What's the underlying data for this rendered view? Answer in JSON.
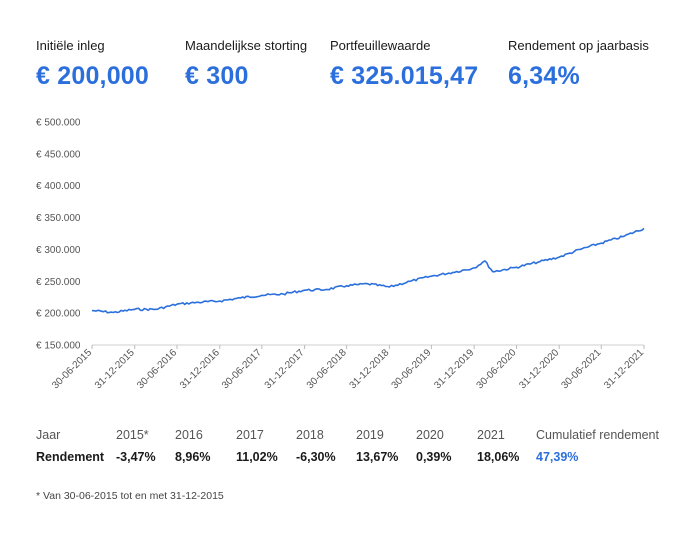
{
  "stats": [
    {
      "label": "Initiële inleg",
      "value": "€ 200,000"
    },
    {
      "label": "Maandelijkse storting",
      "value": "€ 300"
    },
    {
      "label": "Portfeuillewaarde",
      "value": "€ 325.015,47"
    },
    {
      "label": "Rendement op jaarbasis",
      "value": "6,34%"
    }
  ],
  "chart_data": {
    "type": "line",
    "ylim": [
      150000,
      500000
    ],
    "y_ticks": [
      "€ 150.000",
      "€ 200.000",
      "€ 250.000",
      "€ 300.000",
      "€ 350.000",
      "€ 400.000",
      "€ 450.000",
      "€ 500.000"
    ],
    "x_ticks": [
      "30-06-2015",
      "31-12-2015",
      "30-06-2016",
      "31-12-2016",
      "30-06-2017",
      "31-12-2017",
      "30-06-2018",
      "31-12-2018",
      "30-06-2019",
      "31-12-2019",
      "30-06-2020",
      "31-12-2020",
      "30-06-2021",
      "31-12-2021"
    ],
    "series": [
      {
        "color": "#2b6fdc",
        "points": [
          [
            "30-06-2015",
            204000
          ],
          [
            "30-09-2015",
            201000
          ],
          [
            "31-12-2015",
            206000
          ],
          [
            "31-03-2016",
            206000
          ],
          [
            "30-06-2016",
            214000
          ],
          [
            "30-09-2016",
            217000
          ],
          [
            "31-12-2016",
            219000
          ],
          [
            "31-03-2017",
            224000
          ],
          [
            "30-06-2017",
            228000
          ],
          [
            "30-09-2017",
            230000
          ],
          [
            "31-12-2017",
            236000
          ],
          [
            "31-03-2018",
            237000
          ],
          [
            "30-06-2018",
            243000
          ],
          [
            "30-09-2018",
            246000
          ],
          [
            "31-12-2018",
            241000
          ],
          [
            "31-03-2019",
            250000
          ],
          [
            "30-06-2019",
            258000
          ],
          [
            "30-09-2019",
            264000
          ],
          [
            "31-12-2019",
            271000
          ],
          [
            "15-02-2020",
            282000
          ],
          [
            "20-03-2020",
            265000
          ],
          [
            "30-06-2020",
            272000
          ],
          [
            "30-09-2020",
            280000
          ],
          [
            "31-12-2020",
            288000
          ],
          [
            "31-03-2021",
            300000
          ],
          [
            "30-06-2021",
            310000
          ],
          [
            "30-09-2021",
            320000
          ],
          [
            "31-12-2021",
            333000
          ]
        ]
      }
    ]
  },
  "returns": {
    "header_label": "Jaar",
    "row_label": "Rendement",
    "years": [
      "2015*",
      "2016",
      "2017",
      "2018",
      "2019",
      "2020",
      "2021"
    ],
    "values": [
      "-3,47%",
      "8,96%",
      "11,02%",
      "-6,30%",
      "13,67%",
      "0,39%",
      "18,06%"
    ],
    "cumulative_label": "Cumulatief rendement",
    "cumulative_value": "47,39%"
  },
  "footnote": "* Van 30-06-2015 tot en met 31-12-2015"
}
